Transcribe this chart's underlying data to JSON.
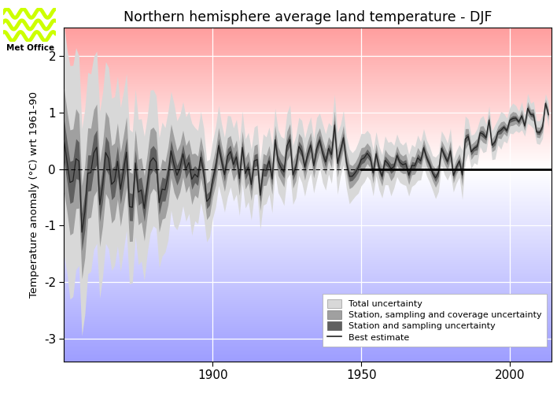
{
  "title": "Northern hemisphere average land temperature - DJF",
  "ylabel": "Temperature anomaly (°C) wrt 1961-90",
  "xlim": [
    1850,
    2014
  ],
  "ylim": [
    -3.4,
    2.5
  ],
  "yticks": [
    -3,
    -2,
    -1,
    0,
    1,
    2
  ],
  "xtick_positions": [
    1900,
    1950,
    2000
  ],
  "xtick_labels": [
    "1900",
    "1950",
    "2000"
  ],
  "legend_labels": [
    "Total uncertainty",
    "Station, sampling and coverage uncertainty",
    "Station and sampling uncertainty",
    "Best estimate"
  ],
  "color_total_unc": "#d8d8d8",
  "color_sscu": "#a0a0a0",
  "color_ssu": "#606060",
  "color_best": "#222222",
  "color_grid": "#ffffff"
}
